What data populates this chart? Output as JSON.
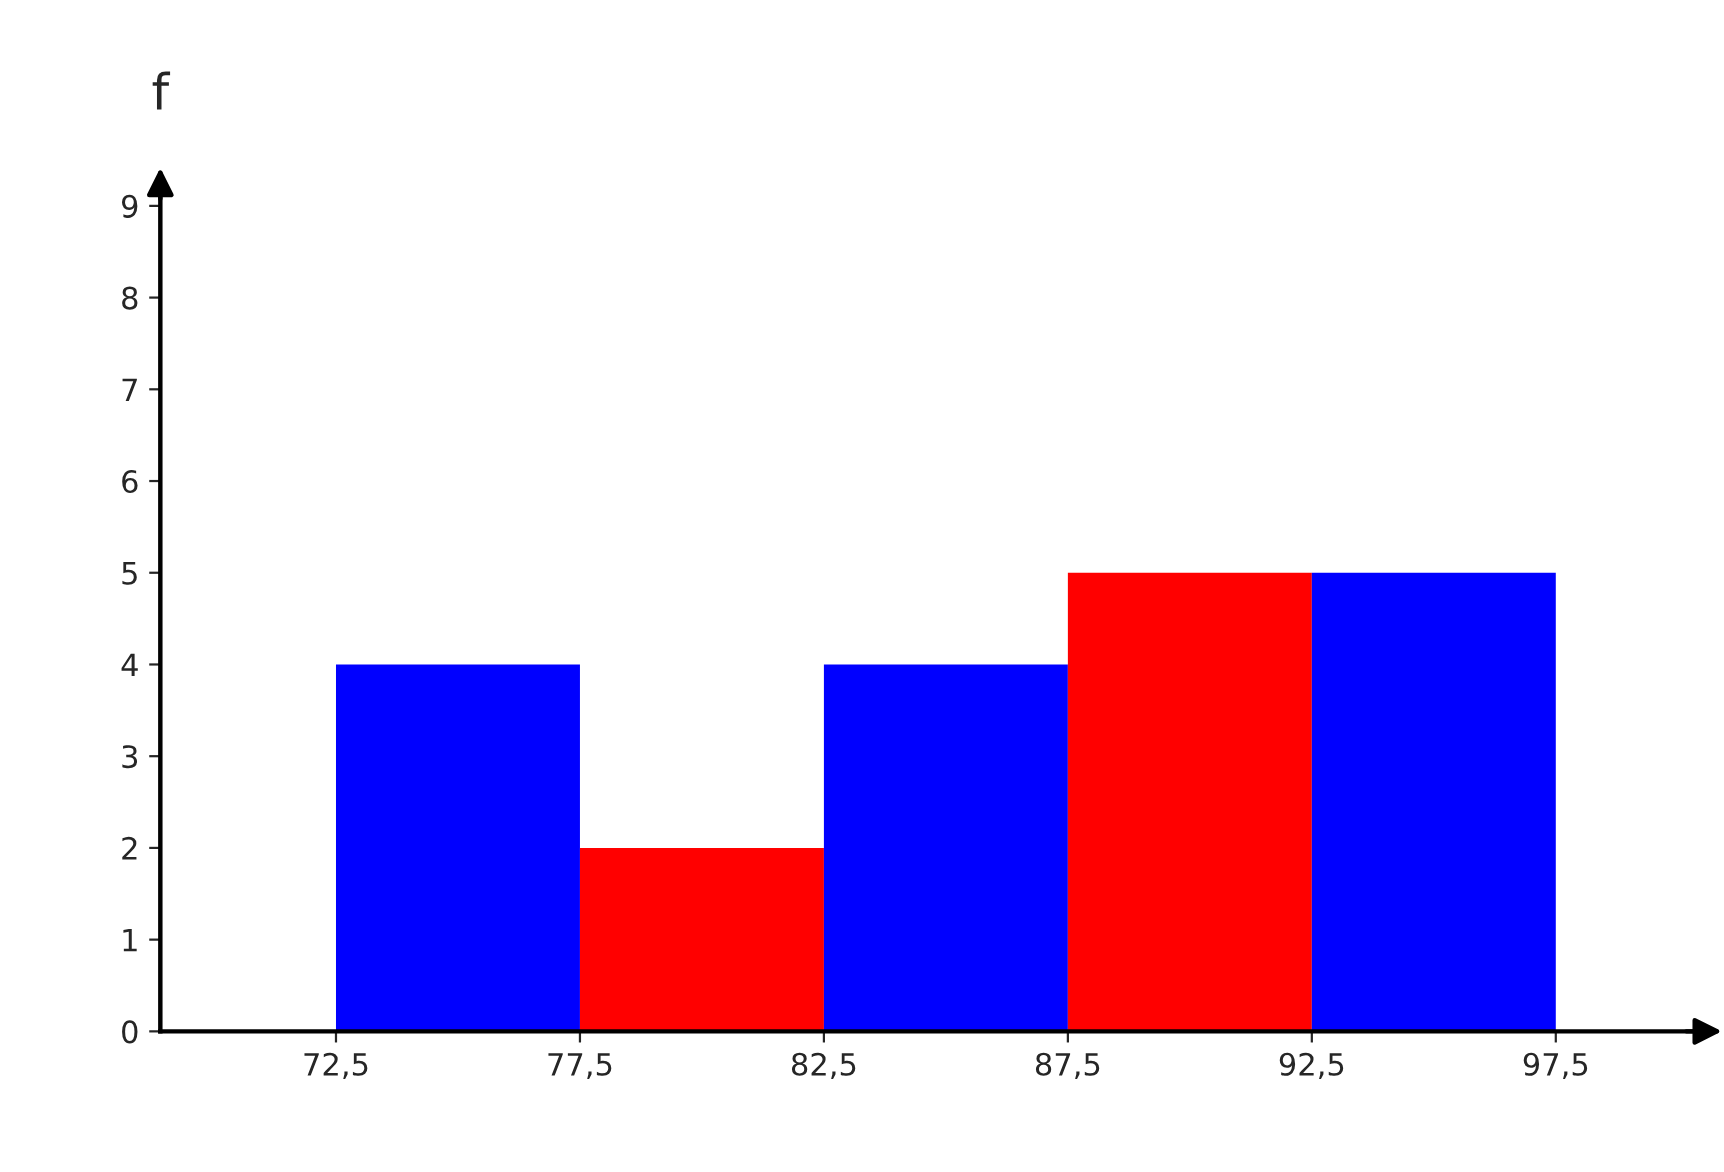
{
  "chart_data": {
    "type": "histogram",
    "ylabel": "f",
    "bins": [
      72.5,
      77.5,
      82.5,
      87.5,
      92.5,
      97.5
    ],
    "values": [
      4,
      2,
      4,
      5,
      5
    ],
    "colors": [
      "#0000ff",
      "#ff0000",
      "#0000ff",
      "#ff0000",
      "#0000ff"
    ],
    "xlim": [
      68.9,
      100.7
    ],
    "ylim": [
      0,
      9.2
    ],
    "xticks": [
      {
        "value": 72.5,
        "label": "72,5"
      },
      {
        "value": 77.5,
        "label": "77,5"
      },
      {
        "value": 82.5,
        "label": "82,5"
      },
      {
        "value": 87.5,
        "label": "87,5"
      },
      {
        "value": 92.5,
        "label": "92,5"
      },
      {
        "value": 97.5,
        "label": "97,5"
      }
    ],
    "yticks": [
      0,
      1,
      2,
      3,
      4,
      5,
      6,
      7,
      8,
      9
    ],
    "grid": false,
    "legend": false
  }
}
